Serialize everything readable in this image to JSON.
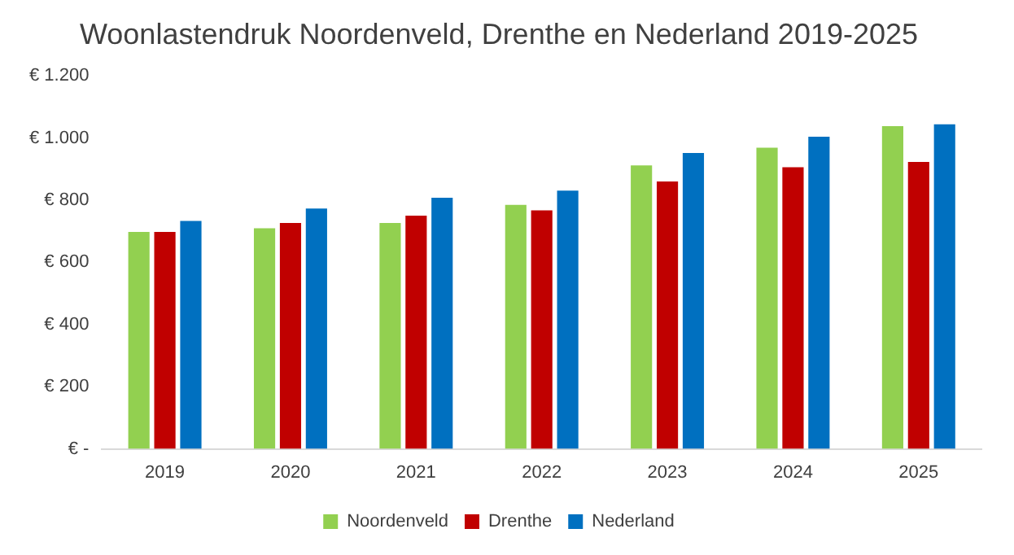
{
  "chart_data": {
    "type": "bar",
    "title": "Woonlastendruk Noordenveld, Drenthe en Nederland 2019-2025",
    "categories": [
      "2019",
      "2020",
      "2021",
      "2022",
      "2023",
      "2024",
      "2025"
    ],
    "series": [
      {
        "name": "Noordenveld",
        "color": "#92d050",
        "values": [
          698,
          710,
          727,
          785,
          912,
          969,
          1038
        ]
      },
      {
        "name": "Drenthe",
        "color": "#c00000",
        "values": [
          698,
          727,
          750,
          767,
          860,
          906,
          923
        ]
      },
      {
        "name": "Nederland",
        "color": "#0070c0",
        "values": [
          733,
          773,
          808,
          831,
          952,
          1004,
          1044
        ]
      }
    ],
    "ylim": [
      0,
      1200
    ],
    "yticks": [
      {
        "value": 0,
        "label": "€ -"
      },
      {
        "value": 200,
        "label": "€ 200"
      },
      {
        "value": 400,
        "label": "€ 400"
      },
      {
        "value": 600,
        "label": "€ 600"
      },
      {
        "value": 800,
        "label": "€ 800"
      },
      {
        "value": 1000,
        "label": "€ 1.000"
      },
      {
        "value": 1200,
        "label": "€ 1.200"
      }
    ],
    "grid": false,
    "legend": "bottom"
  }
}
